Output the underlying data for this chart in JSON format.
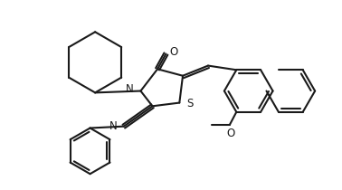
{
  "bg_color": "#ffffff",
  "line_color": "#1a1a1a",
  "line_width": 1.5,
  "figsize": [
    3.78,
    2.1
  ],
  "dpi": 100,
  "xlim": [
    0,
    10
  ],
  "ylim": [
    0,
    5.56
  ]
}
